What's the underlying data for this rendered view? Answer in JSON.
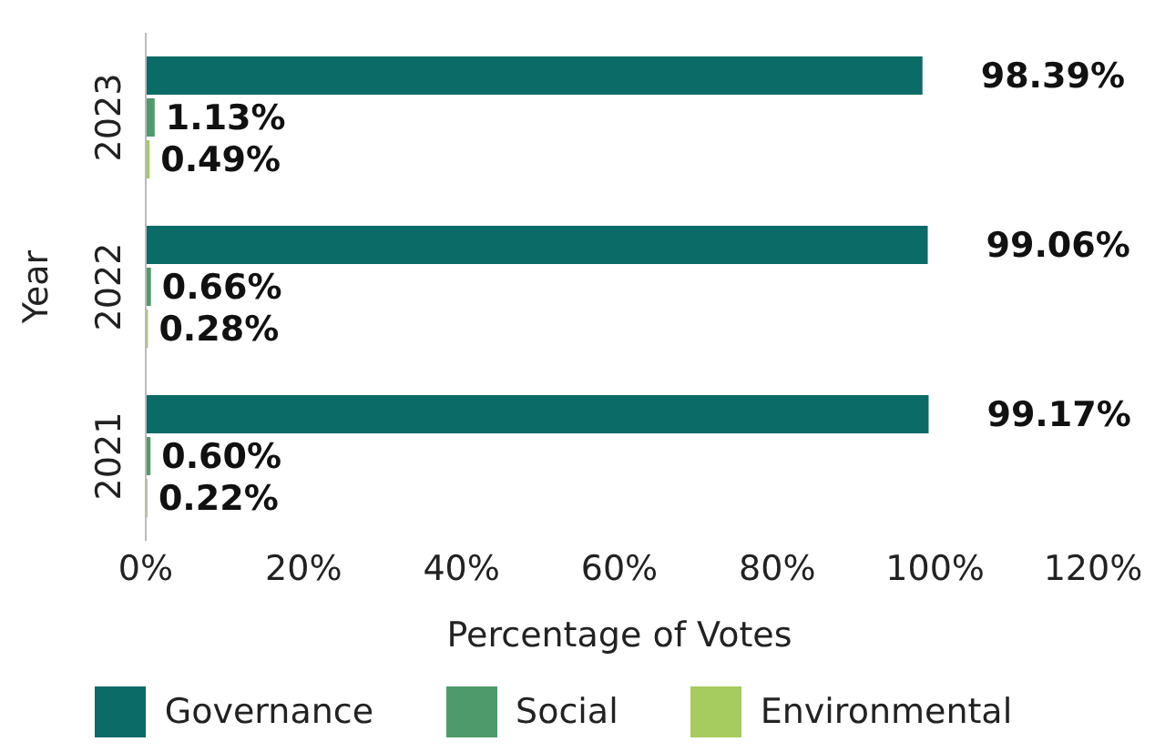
{
  "chart_data": {
    "type": "bar",
    "orientation": "horizontal",
    "xlabel": "Percentage of Votes",
    "ylabel": "Year",
    "categories": [
      "2023",
      "2022",
      "2021"
    ],
    "series": [
      {
        "name": "Governance",
        "color": "#0b6b66",
        "values": [
          98.39,
          99.06,
          99.17
        ],
        "value_labels": [
          "98.39%",
          "99.06%",
          "99.17%"
        ]
      },
      {
        "name": "Social",
        "color": "#4f9a6a",
        "values": [
          1.13,
          0.66,
          0.6
        ],
        "value_labels": [
          "1.13%",
          "0.66%",
          "0.60%"
        ]
      },
      {
        "name": "Environmental",
        "color": "#a6cb5e",
        "values": [
          0.49,
          0.28,
          0.22
        ],
        "value_labels": [
          "0.49%",
          "0.28%",
          "0.22%"
        ]
      }
    ],
    "xlim": [
      0,
      120
    ],
    "xticks": [
      {
        "value": 0,
        "label": "0%"
      },
      {
        "value": 20,
        "label": "20%"
      },
      {
        "value": 40,
        "label": "40%"
      },
      {
        "value": 60,
        "label": "60%"
      },
      {
        "value": 80,
        "label": "80%"
      },
      {
        "value": 100,
        "label": "100%"
      },
      {
        "value": 120,
        "label": "120%"
      }
    ],
    "legend": "bottom",
    "grid": false
  }
}
